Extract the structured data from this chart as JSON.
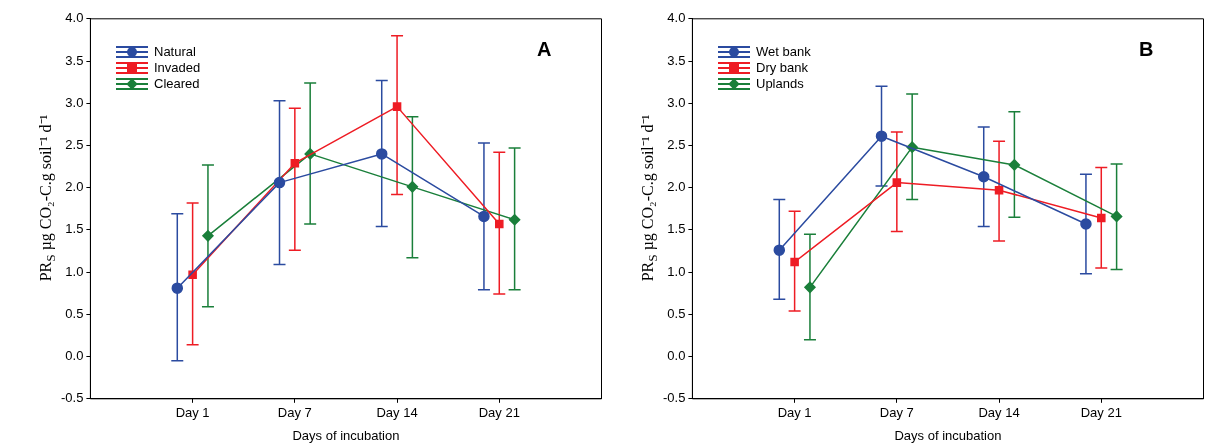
{
  "chart_data": [
    {
      "type": "line",
      "annotations": [
        "A"
      ],
      "xlabel": "Days of incubation",
      "ylabel": "PR$_{S}$ µg CO₂-C.g soil⁻¹ d⁻¹",
      "categories": [
        "Day 1",
        "Day 7",
        "Day 14",
        "Day 21"
      ],
      "series": [
        {
          "name": "Natural",
          "color": "#2b4ba0",
          "marker": "circle",
          "values": [
            0.81,
            2.06,
            2.4,
            1.66
          ],
          "errors": [
            [
              -0.05,
              1.69
            ],
            [
              1.09,
              3.03
            ],
            [
              1.54,
              3.27
            ],
            [
              0.79,
              2.53
            ]
          ]
        },
        {
          "name": "Invaded",
          "color": "#ee1c24",
          "marker": "square",
          "values": [
            0.97,
            2.29,
            2.96,
            1.57
          ],
          "errors": [
            [
              0.14,
              1.82
            ],
            [
              1.26,
              2.94
            ],
            [
              1.92,
              3.8
            ],
            [
              0.74,
              2.42
            ]
          ]
        },
        {
          "name": "Cleared",
          "color": "#1a7f3a",
          "marker": "diamond",
          "values": [
            1.43,
            2.4,
            2.01,
            1.62
          ],
          "errors": [
            [
              0.59,
              2.27
            ],
            [
              1.57,
              3.24
            ],
            [
              1.17,
              2.84
            ],
            [
              0.79,
              2.47
            ]
          ]
        }
      ],
      "ylim": [
        -0.5,
        4.0
      ],
      "yticks": [
        {
          "value": -0.5,
          "label": "-0.5"
        },
        {
          "value": 0,
          "label": "0.0"
        },
        {
          "value": 0.5,
          "label": "0.5"
        },
        {
          "value": 1,
          "label": "1.0"
        },
        {
          "value": 1.5,
          "label": "1.5"
        },
        {
          "value": 2,
          "label": "2.0"
        },
        {
          "value": 2.5,
          "label": "2.5"
        },
        {
          "value": 3,
          "label": "3.0"
        },
        {
          "value": 3.5,
          "label": "3.5"
        },
        {
          "value": 4,
          "label": "4.0"
        }
      ],
      "legend": "top left",
      "grid": false
    },
    {
      "type": "line",
      "annotations": [
        "B"
      ],
      "xlabel": "Days of incubation",
      "ylabel": "PR$_{S}$ µg CO₂-C.g soil⁻¹ d⁻¹",
      "categories": [
        "Day 1",
        "Day 7",
        "Day 14",
        "Day 21"
      ],
      "series": [
        {
          "name": "Wet bank",
          "color": "#2b4ba0",
          "marker": "circle",
          "values": [
            1.26,
            2.61,
            2.13,
            1.57
          ],
          "errors": [
            [
              0.68,
              1.86
            ],
            [
              2.02,
              3.2
            ],
            [
              1.54,
              2.72
            ],
            [
              0.98,
              2.16
            ]
          ]
        },
        {
          "name": "Dry bank",
          "color": "#ee1c24",
          "marker": "square",
          "values": [
            1.12,
            2.06,
            1.97,
            1.64
          ],
          "errors": [
            [
              0.54,
              1.72
            ],
            [
              1.48,
              2.66
            ],
            [
              1.37,
              2.55
            ],
            [
              1.05,
              2.24
            ]
          ]
        },
        {
          "name": "Uplands",
          "color": "#1a7f3a",
          "marker": "diamond",
          "values": [
            0.82,
            2.48,
            2.27,
            1.66
          ],
          "errors": [
            [
              0.2,
              1.45
            ],
            [
              1.86,
              3.11
            ],
            [
              1.65,
              2.9
            ],
            [
              1.03,
              2.28
            ]
          ]
        }
      ],
      "ylim": [
        -0.5,
        4.0
      ],
      "yticks": [
        {
          "value": -0.5,
          "label": "-0.5"
        },
        {
          "value": 0,
          "label": "0.0"
        },
        {
          "value": 0.5,
          "label": "0.5"
        },
        {
          "value": 1,
          "label": "1.0"
        },
        {
          "value": 1.5,
          "label": "1.5"
        },
        {
          "value": 2,
          "label": "2.0"
        },
        {
          "value": 2.5,
          "label": "2.5"
        },
        {
          "value": 3,
          "label": "3.0"
        },
        {
          "value": 3.5,
          "label": "3.5"
        },
        {
          "value": 4,
          "label": "4.0"
        }
      ],
      "legend": "top left",
      "grid": false
    }
  ]
}
